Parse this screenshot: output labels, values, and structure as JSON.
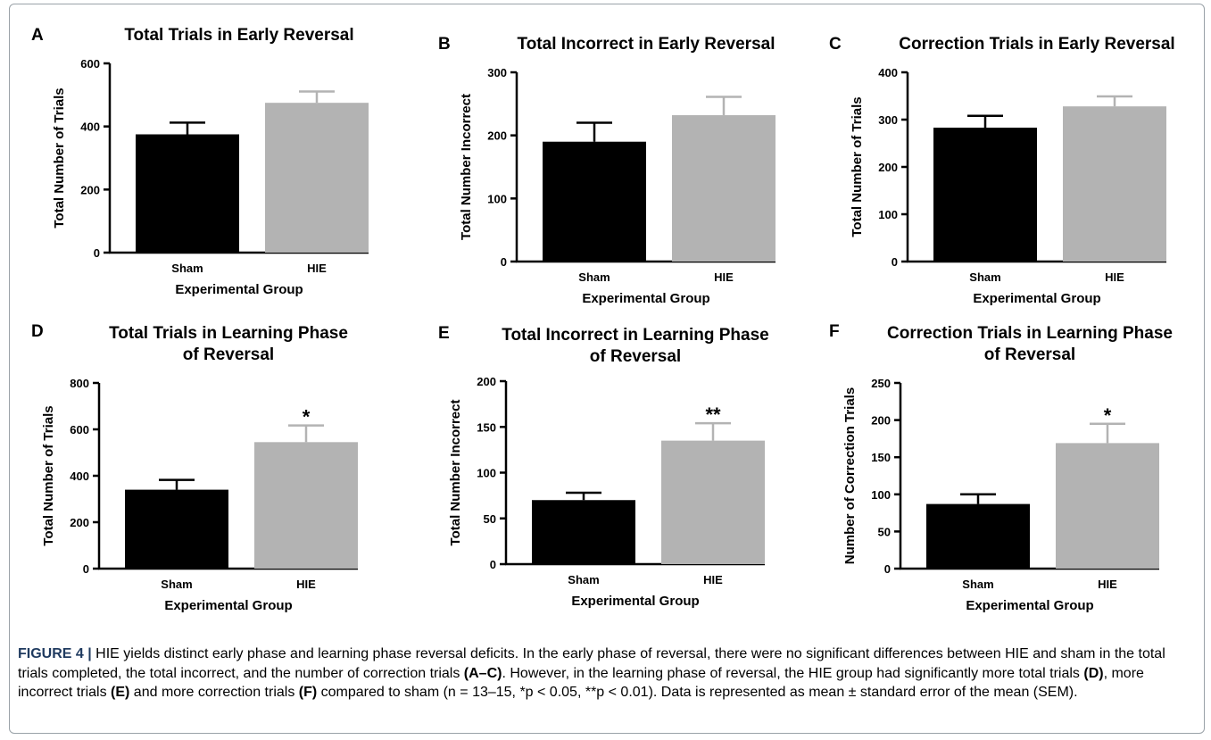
{
  "chart_data": [
    {
      "type": "bar",
      "panel_label": "A",
      "title": "Total Trials in Early Reversal",
      "categories": [
        "Sham",
        "HIE"
      ],
      "values": [
        375,
        475
      ],
      "errors": [
        37,
        36
      ],
      "colors": [
        "#000000",
        "#b3b3b3"
      ],
      "xlabel": "Experimental Group",
      "ylabel": "Total Number of Trials",
      "ylim": [
        0,
        600
      ],
      "yticks": [
        0,
        200,
        400,
        600
      ],
      "significance": [
        "",
        ""
      ]
    },
    {
      "type": "bar",
      "panel_label": "B",
      "title": "Total Incorrect in Early Reversal",
      "categories": [
        "Sham",
        "HIE"
      ],
      "values": [
        190,
        232
      ],
      "errors": [
        30,
        29
      ],
      "colors": [
        "#000000",
        "#b3b3b3"
      ],
      "xlabel": "Experimental Group",
      "ylabel": "Total Number Incorrect",
      "ylim": [
        0,
        300
      ],
      "yticks": [
        0,
        100,
        200,
        300
      ],
      "significance": [
        "",
        ""
      ]
    },
    {
      "type": "bar",
      "panel_label": "C",
      "title": "Correction Trials in Early Reversal",
      "categories": [
        "Sham",
        "HIE"
      ],
      "values": [
        283,
        328
      ],
      "errors": [
        25,
        21
      ],
      "colors": [
        "#000000",
        "#b3b3b3"
      ],
      "xlabel": "Experimental Group",
      "ylabel": "Total Number of Trials",
      "ylim": [
        0,
        400
      ],
      "yticks": [
        0,
        100,
        200,
        300,
        400
      ],
      "significance": [
        "",
        ""
      ]
    },
    {
      "type": "bar",
      "panel_label": "D",
      "title": "Total Trials in Learning Phase of Reversal",
      "title_lines": [
        "Total Trials in Learning Phase",
        "of Reversal"
      ],
      "categories": [
        "Sham",
        "HIE"
      ],
      "values": [
        340,
        545
      ],
      "errors": [
        42,
        72
      ],
      "colors": [
        "#000000",
        "#b3b3b3"
      ],
      "xlabel": "Experimental Group",
      "ylabel": "Total Number of Trials",
      "ylim": [
        0,
        800
      ],
      "yticks": [
        0,
        200,
        400,
        600,
        800
      ],
      "significance": [
        "",
        "*"
      ]
    },
    {
      "type": "bar",
      "panel_label": "E",
      "title": "Total Incorrect in Learning Phase of Reversal",
      "title_lines": [
        "Total Incorrect in Learning Phase",
        "of Reversal"
      ],
      "categories": [
        "Sham",
        "HIE"
      ],
      "values": [
        70,
        135
      ],
      "errors": [
        8,
        19
      ],
      "colors": [
        "#000000",
        "#b3b3b3"
      ],
      "xlabel": "Experimental Group",
      "ylabel": "Total Number Incorrect",
      "ylim": [
        0,
        200
      ],
      "yticks": [
        0,
        50,
        100,
        150,
        200
      ],
      "significance": [
        "",
        "**"
      ]
    },
    {
      "type": "bar",
      "panel_label": "F",
      "title": "Correction Trials in Learning Phase of Reversal",
      "title_lines": [
        "Correction Trials in Learning Phase",
        "of Reversal"
      ],
      "categories": [
        "Sham",
        "HIE"
      ],
      "values": [
        87,
        169
      ],
      "errors": [
        13,
        26
      ],
      "colors": [
        "#000000",
        "#b3b3b3"
      ],
      "xlabel": "Experimental Group",
      "ylabel": "Number of Correction Trials",
      "ylim": [
        0,
        250
      ],
      "yticks": [
        0,
        50,
        100,
        150,
        200,
        250
      ],
      "significance": [
        "",
        "*"
      ]
    }
  ],
  "caption": {
    "figure_label": "FIGURE 4 |",
    "seg1": " HIE yields distinct early phase and learning phase reversal deficits. In the early phase of reversal, there were no significant differences between HIE and sham in the total trials completed, the total incorrect, and the number of correction trials ",
    "ref1": "(A–C)",
    "seg2": ". However, in the learning phase of reversal, the HIE group had significantly more total trials ",
    "ref2": "(D)",
    "seg3": ", more incorrect trials ",
    "ref3": "(E)",
    "seg4": " and more correction trials ",
    "ref4": "(F)",
    "seg5": " compared to sham (n = 13–15, *p < 0.05, **p < 0.01). Data is represented as mean ± standard error of the mean (SEM)."
  }
}
